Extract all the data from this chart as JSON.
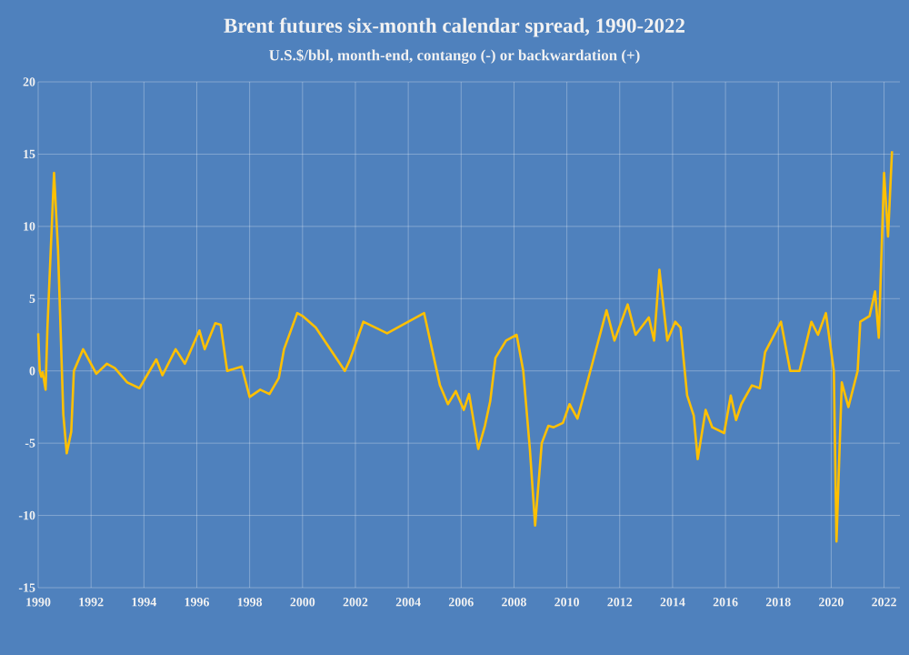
{
  "chart_data": {
    "type": "line",
    "title": "Brent futures six-month calendar spread, 1990-2022",
    "subtitle": "U.S.$/bbl, month-end, contango (-) or backwardation (+)",
    "x": [
      1990.0,
      1990.06,
      1990.12,
      1990.17,
      1990.28,
      1990.35,
      1990.6,
      1990.75,
      1990.95,
      1991.08,
      1991.25,
      1991.35,
      1991.7,
      1992.2,
      1992.6,
      1992.9,
      1993.37,
      1993.83,
      1994.47,
      1994.7,
      1995.2,
      1995.55,
      1996.1,
      1996.3,
      1996.7,
      1996.9,
      1997.15,
      1997.7,
      1998.0,
      1998.4,
      1998.75,
      1999.1,
      1999.3,
      1999.8,
      2000.0,
      2000.5,
      2001.6,
      2001.8,
      2002.3,
      2003.2,
      2004.6,
      2005.2,
      2005.5,
      2005.8,
      2006.1,
      2006.3,
      2006.65,
      2006.9,
      2007.1,
      2007.3,
      2007.7,
      2008.1,
      2008.35,
      2008.6,
      2008.8,
      2009.05,
      2009.3,
      2009.5,
      2009.85,
      2010.1,
      2010.4,
      2010.8,
      2011.5,
      2011.8,
      2012.3,
      2012.6,
      2013.1,
      2013.3,
      2013.5,
      2013.8,
      2014.1,
      2014.3,
      2014.55,
      2014.8,
      2014.95,
      2015.25,
      2015.5,
      2015.95,
      2016.2,
      2016.4,
      2016.6,
      2017.0,
      2017.3,
      2017.5,
      2018.1,
      2018.45,
      2018.8,
      2019.25,
      2019.5,
      2019.8,
      2020.1,
      2020.2,
      2020.4,
      2020.65,
      2021.0,
      2021.1,
      2021.45,
      2021.66,
      2021.8,
      2022.0,
      2022.15,
      2022.3
    ],
    "series": [
      {
        "color": "#ffc000",
        "values": [
          2.6,
          0,
          -0.4,
          -0.1,
          -1.3,
          3.0,
          13.7,
          8.4,
          -3,
          -5.7,
          -4.2,
          0,
          1.5,
          -0.2,
          0.5,
          0.2,
          -0.8,
          -1.2,
          0.8,
          -0.3,
          1.5,
          0.5,
          2.8,
          1.5,
          3.3,
          3.2,
          0,
          0.3,
          -1.8,
          -1.3,
          -1.6,
          -0.5,
          1.5,
          4.0,
          3.8,
          3.0,
          0,
          0.8,
          3.4,
          2.6,
          4.0,
          -1.0,
          -2.3,
          -1.4,
          -2.7,
          -1.6,
          -5.4,
          -3.8,
          -2.1,
          0.9,
          2.1,
          2.5,
          0,
          -5.4,
          -10.7,
          -5.0,
          -3.8,
          -3.9,
          -3.6,
          -2.3,
          -3.3,
          -0.6,
          4.2,
          2.1,
          4.6,
          2.5,
          3.7,
          2.1,
          7.0,
          2.1,
          3.4,
          3.0,
          -1.7,
          -3.1,
          -6.1,
          -2.7,
          -3.9,
          -4.3,
          -1.7,
          -3.4,
          -2.3,
          -1.0,
          -1.2,
          1.3,
          3.4,
          0,
          0,
          3.4,
          2.5,
          4.0,
          0,
          -11.8,
          -0.8,
          -2.5,
          0,
          3.4,
          3.8,
          5.5,
          2.3,
          13.7,
          9.3,
          15.2
        ]
      }
    ],
    "xlim": [
      1990,
      2022.6
    ],
    "xticks": [
      1990,
      1992,
      1994,
      1996,
      1998,
      2000,
      2002,
      2004,
      2006,
      2008,
      2010,
      2012,
      2014,
      2016,
      2018,
      2020,
      2022
    ],
    "ylim": [
      -15,
      20
    ],
    "yticks": [
      -15,
      -10,
      -5,
      0,
      5,
      10,
      15,
      20
    ],
    "grid": true,
    "marker": "none",
    "line_style": "solid"
  }
}
